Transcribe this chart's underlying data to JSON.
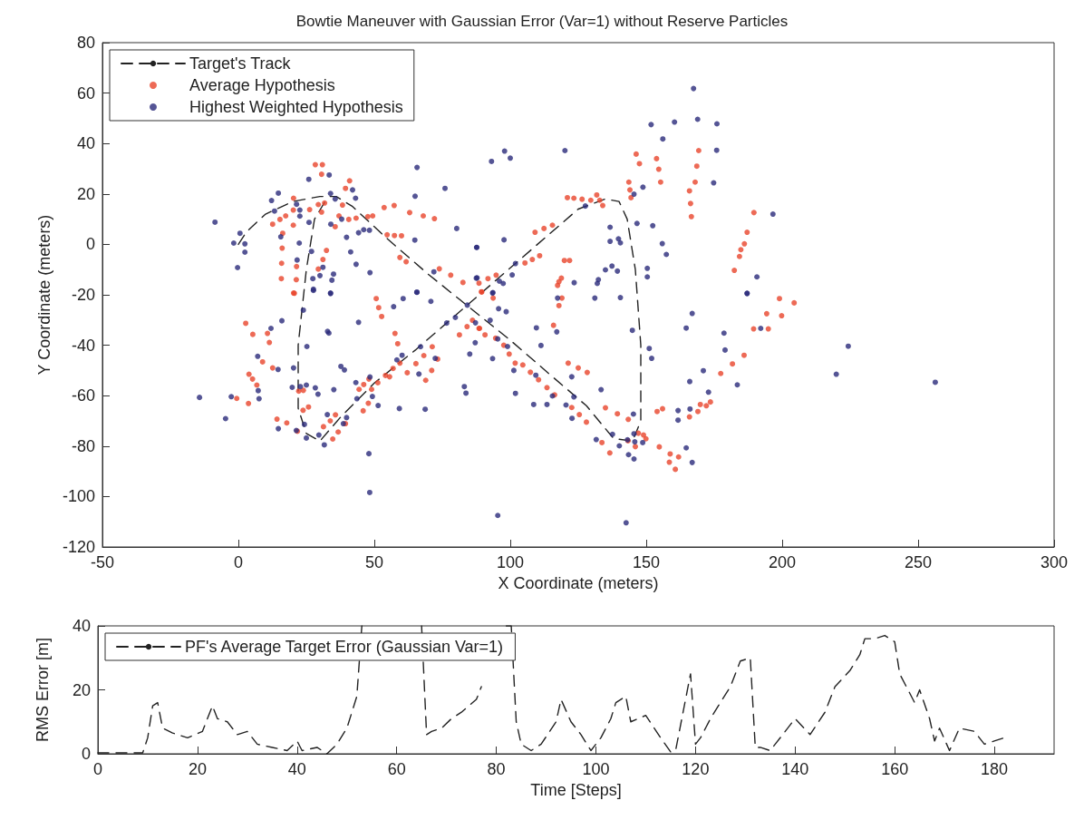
{
  "chart_data": [
    {
      "type": "scatter",
      "title": "Bowtie Maneuver with Gaussian Error (Var=1) without Reserve Particles",
      "xlabel": "X Coordinate (meters)",
      "ylabel": "Y Coordinate (meters)",
      "xlim": [
        -50,
        300
      ],
      "xticks": [
        -50,
        0,
        50,
        100,
        150,
        200,
        250,
        300
      ],
      "ylim": [
        -120,
        80
      ],
      "yticks": [
        -120,
        -100,
        -80,
        -60,
        -40,
        -20,
        0,
        20,
        40,
        60,
        80
      ],
      "grid": false,
      "legend": "top left",
      "marker": "circle",
      "series": [
        {
          "name": "Target's Track",
          "type": "line",
          "marker": "none",
          "line_style": "dashed",
          "color": "#222222",
          "x": [
            0,
            3,
            10,
            20,
            30,
            36,
            42,
            55,
            70,
            85,
            100,
            115,
            128,
            138,
            145,
            148,
            148,
            146,
            143,
            140,
            135,
            125,
            110,
            95,
            80,
            65,
            50,
            38,
            30,
            25,
            22,
            22,
            25,
            28,
            33
          ],
          "values": [
            0,
            5,
            12,
            17,
            19,
            19,
            15,
            2,
            -12,
            -25,
            -38,
            -52,
            -64,
            -77,
            -78,
            -70,
            -40,
            -10,
            10,
            17,
            18,
            14,
            0,
            -14,
            -28,
            -42,
            -55,
            -68,
            -78,
            -75,
            -65,
            -40,
            -10,
            10,
            19
          ]
        },
        {
          "name": "Average Hypothesis",
          "color": "#e8452c",
          "x": [
            28.3,
            30.9,
            30.6,
            40.9,
            39.4,
            20.3,
            29.4,
            31.7,
            38.3,
            30.6,
            20.2,
            17.4,
            15.3,
            12.6,
            20.2,
            26.2,
            37.0,
            40.6,
            43.3,
            47.6,
            49.4,
            53.6,
            57.3,
            63,
            68,
            72.1,
            35.6,
            54.7,
            57.4,
            60,
            59.4,
            61.7,
            73.9,
            78.1,
            82.6,
            16.3,
            16.1,
            32.4,
            31.1,
            15.9,
            21.4,
            29.4,
            15.8,
            21.3,
            20.3,
            146.3,
            147.5,
            153.8,
            154.6,
            155.3,
            143.6,
            144,
            144.4,
            169.3,
            168.6,
            168,
            165.9,
            166.3,
            166.6,
            189.6,
            187.1,
            186.1,
            184.8,
            184.3,
            182.4,
            121,
            123.4,
            126.4,
            129.6,
            131.8,
            132.9,
            134,
            109.1,
            112.4,
            115.5,
            105.4,
            108.1,
            110.8,
            119.9,
            121.8,
            118.8,
            117.9,
            117.4,
            91.8,
            94.8,
            88.5,
            89.4,
            20.6,
            2.7,
            5.3,
            10.7,
            11.4,
            8.9,
            12.6,
            3.9,
            5.2,
            6.8,
            -0.6,
            3.7,
            14.2,
            17.8,
            22.2,
            23.9,
            23.8,
            25.8,
            21.7,
            31.3,
            33.8,
            35.7,
            34.7,
            36.7,
            39.4,
            45.9,
            47.8,
            44.4,
            46.1,
            49,
            51.3,
            48,
            54.1,
            55.6,
            56.9,
            59.4,
            58.6,
            57.6,
            62.1,
            65.3,
            68.2,
            71.3,
            68.9,
            71.1,
            73.3,
            50.7,
            51.6,
            52.7,
            81.3,
            84.1,
            86.1,
            88.7,
            89.5,
            93.7,
            88.5,
            90.7,
            94.6,
            97.6,
            99.6,
            101.8,
            104.6,
            107.4,
            110.4,
            113.5,
            116.3,
            121.3,
            125,
            128.3,
            115.9,
            119,
            117.9,
            122.6,
            125.4,
            128,
            135,
            139.4,
            143.4,
            133.7,
            136.6,
            143.3,
            147.1,
            149,
            149.9,
            146,
            154.8,
            158.8,
            161.9,
            158.5,
            160.7,
            154,
            156,
            165.9,
            169,
            169.9,
            172.1,
            173.6,
            177.4,
            181.7,
            186,
            189.5,
            194.9,
            194.3,
            199.8,
            199,
            204.4
          ],
          "values": [
            31.6,
            31.6,
            27.8,
            25.2,
            22.2,
            18.3,
            15.8,
            16.4,
            15.6,
            12.8,
            13.6,
            11.3,
            9.9,
            8.0,
            7.6,
            13.8,
            11.3,
            9.9,
            10.4,
            11.0,
            11.3,
            14.6,
            15.4,
            12.6,
            11.3,
            10.2,
            7.0,
            3.8,
            3.5,
            3.4,
            -5.2,
            -6.9,
            -9.7,
            -12.2,
            -15.1,
            4.4,
            -1.5,
            -2.4,
            -6,
            -7.5,
            -8.8,
            -9.8,
            -13.6,
            -14,
            -19.3,
            35.8,
            32,
            34,
            29.8,
            24.7,
            24.7,
            21.6,
            18.5,
            37.2,
            31,
            24.7,
            21.2,
            16.2,
            11,
            12.6,
            4.8,
            0.2,
            -2.1,
            -4.8,
            -10.3,
            18.5,
            18.3,
            17.9,
            17.5,
            19.6,
            17.5,
            15.4,
            4.8,
            6.3,
            7.6,
            -7.4,
            -6,
            -4.5,
            -6.4,
            -6.4,
            -13.4,
            -14.8,
            -16.3,
            -13.6,
            -12.2,
            -15.4,
            -18.8,
            -19.4,
            -31.3,
            -35.7,
            -35.3,
            -38.9,
            -46.6,
            -49,
            -51.5,
            -53.4,
            -55.8,
            -61.1,
            -63.1,
            -69.3,
            -70.8,
            -58.2,
            -57.9,
            -65.8,
            -64.5,
            -74.1,
            -72.3,
            -70,
            -67.6,
            -77.2,
            -74.4,
            -71.1,
            -66,
            -63,
            -57.5,
            -55.6,
            -57.5,
            -54.9,
            -53.4,
            -52,
            -52.5,
            -49.2,
            -47.1,
            -39.4,
            -35.3,
            -50.9,
            -47.3,
            -44.1,
            -40.6,
            -53.9,
            -50,
            -45.5,
            -21.5,
            -25.1,
            -28.6,
            -35.9,
            -32.6,
            -30.1,
            -33.3,
            -18.9,
            -21.3,
            -33.3,
            -35.9,
            -37.2,
            -40,
            -43.5,
            -47.1,
            -47.8,
            -50.7,
            -53.7,
            -56.8,
            -59.7,
            -47.1,
            -49,
            -50.8,
            -32.1,
            -21.3,
            -24.3,
            -64.7,
            -67.5,
            -70.5,
            -64.8,
            -67.2,
            -69.4,
            -78.6,
            -82.7,
            -77.9,
            -74.9,
            -75.6,
            -77.1,
            -80.2,
            -80.3,
            -83.1,
            -84.3,
            -86.4,
            -89.2,
            -66.3,
            -65.2,
            -68.4,
            -66.3,
            -63.5,
            -64,
            -62.5,
            -51.2,
            -47.4,
            -44,
            -33.5,
            -33.5,
            -27.5,
            -28.3,
            -21.5,
            -23.2
          ]
        },
        {
          "name": "Highest Weighted Hypothesis",
          "color": "#2b2a7a",
          "x": [
            -8.6,
            65.7,
            76,
            25.9,
            33.4,
            14.7,
            12.2,
            21.4,
            13.3,
            22.6,
            22.6,
            26,
            33.9,
            35.6,
            42,
            43.1,
            65,
            34,
            38,
            39.8,
            44.2,
            46.1,
            48.2,
            80.3,
            64.9,
            0.6,
            -1.7,
            2.4,
            2.4,
            -0.3,
            15.6,
            22.4,
            26.9,
            41.3,
            43.3,
            48.4,
            31.1,
            30,
            35,
            21.6,
            27.4,
            34.4,
            27.6,
            33.9,
            71.9,
            87.6,
            87.8,
            65.7,
            167.4,
            168.9,
            160.4,
            151.8,
            176,
            156.1,
            175.9,
            174.8,
            97.9,
            100,
            93.1,
            120.1,
            148.8,
            145.5,
            127.6,
            196.6,
            146.6,
            152.4,
            136.7,
            136.7,
            139.8,
            140.5,
            155.9,
            157.4,
            97.7,
            87.7,
            101.9,
            100.7,
            96,
            97.4,
            93.6,
            135,
            137.4,
            139.4,
            123.5,
            132.4,
            132,
            150.4,
            150.4,
            190.7,
            187.1,
            87.5,
            -14.3,
            -4.7,
            -2.6,
            7.6,
            7.3,
            7.1,
            12,
            16,
            14.6,
            20.3,
            23.9,
            25.2,
            27.6,
            33.9,
            32.8,
            33.3,
            19.8,
            22.8,
            25,
            28.3,
            29.3,
            35.1,
            14.7,
            21.3,
            24.3,
            25,
            29.6,
            31.6,
            32.7,
            38.6,
            39.8,
            37.7,
            39,
            43.2,
            43.6,
            48.4,
            49.3,
            51.4,
            59.2,
            68.7,
            44.2,
            57.1,
            60.6,
            65.6,
            70.8,
            58.3,
            60.2,
            67,
            66.4,
            72.4,
            48,
            48.3,
            76.6,
            79.8,
            84.2,
            87.2,
            87.1,
            85.1,
            83.1,
            83.7,
            93.5,
            95.7,
            98.5,
            92.6,
            93.5,
            95.4,
            99,
            101.3,
            101.9,
            109.6,
            111.3,
            109.4,
            108.6,
            113.5,
            117.4,
            117.1,
            115.5,
            120.5,
            122.6,
            123.4,
            122.7,
            131.1,
            140.5,
            133.4,
            144.9,
            151.1,
            152,
            145.3,
            137.6,
            131.6,
            140.1,
            143.1,
            145.5,
            145.8,
            148.7,
            143.5,
            145.5,
            164.7,
            166.9,
            161.7,
            161.7,
            166.1,
            166,
            171,
            172.9,
            183.5,
            178.6,
            179,
            164.7,
            166.9,
            187.1,
            192.1,
            219.9,
            224.3,
            95.4,
            142.6,
            256.3
          ],
          "values": [
            8.8,
            30.5,
            22.2,
            25.8,
            27.5,
            20.3,
            17.4,
            15.9,
            13.2,
            13.6,
            11.2,
            8.7,
            20.2,
            18,
            21.6,
            18.3,
            19.1,
            8,
            10,
            2.8,
            4.6,
            5.8,
            5.6,
            6.3,
            1.7,
            4.4,
            0.5,
            0.2,
            -3.1,
            -9.2,
            3,
            0.5,
            -2.8,
            -3,
            -7.9,
            -11.2,
            -9.1,
            -12.4,
            -11.8,
            -6.2,
            -13.6,
            -14.2,
            -17.8,
            -19.3,
            -10.9,
            -1.2,
            -13.3,
            -19.0,
            61.8,
            49.6,
            48.5,
            47.5,
            47.8,
            41.8,
            37.3,
            24.4,
            37,
            34.2,
            32.9,
            37.2,
            22.7,
            19.9,
            15.2,
            12,
            8.3,
            7.4,
            6.8,
            1.2,
            2.2,
            0.6,
            0.3,
            -4,
            1.8,
            -1.2,
            -7.6,
            -12.1,
            -14.6,
            -15.5,
            -19.1,
            -10.1,
            -8.6,
            -10.6,
            -15.2,
            -14,
            -15.5,
            -9.5,
            -12.9,
            -12.9,
            -19.4,
            -13.4,
            -60.7,
            -69.1,
            -60.4,
            -61.2,
            -58,
            -44.4,
            -33.3,
            -30.3,
            -49.6,
            -49,
            -26.1,
            -40.5,
            -18.3,
            -19.5,
            -34.5,
            -35.2,
            -56.7,
            -56.4,
            -55.8,
            -56.9,
            -59.4,
            -57.6,
            -73.1,
            -73.8,
            -71.4,
            -76.8,
            -75.6,
            -79.5,
            -67.5,
            -71.1,
            -68.7,
            -48.4,
            -49.8,
            -54.8,
            -61.2,
            -52.6,
            -60.3,
            -63.9,
            -65.1,
            -65.4,
            -30.9,
            -24.7,
            -21.5,
            -19,
            -22.6,
            -45.8,
            -44,
            -40.6,
            -51.4,
            -45.2,
            -83,
            -98.4,
            -31.2,
            -29,
            -24.1,
            -31.1,
            -39,
            -43.5,
            -56.4,
            -59,
            -19.3,
            -25.5,
            -26.7,
            -30.1,
            -45.3,
            -37.5,
            -40.5,
            -50,
            -59.1,
            -33.1,
            -40.1,
            -51.9,
            -63.5,
            -63.5,
            -21.3,
            -34.7,
            -60.1,
            -63.7,
            -52.5,
            -60.5,
            -69,
            -21.3,
            -21.1,
            -57.6,
            -34.1,
            -41.3,
            -45.2,
            -67.3,
            -75.3,
            -77.4,
            -79.9,
            -77.5,
            -75.1,
            -78.3,
            -78.6,
            -83.4,
            -85.1,
            -80.7,
            -86.5,
            -65.9,
            -69.7,
            -65.3,
            -54.4,
            -50.1,
            -58.6,
            -55.7,
            -35.2,
            -41.9,
            -33.2,
            -27.4,
            -19.5,
            -33.3,
            -51.5,
            -40.4,
            -107.5,
            -110.4,
            -54.7
          ]
        }
      ]
    },
    {
      "type": "line",
      "xlabel": "Time [Steps]",
      "ylabel": "RMS Error [m]",
      "xlim": [
        0,
        192
      ],
      "xticks": [
        0,
        20,
        40,
        60,
        80,
        100,
        120,
        140,
        160,
        180
      ],
      "ylim": [
        0,
        40
      ],
      "yticks": [
        0,
        20,
        40
      ],
      "grid": false,
      "legend": "top left",
      "line_style": "dashed",
      "series": [
        {
          "name": "PF's Average Target Error (Gaussian Var=1)",
          "color": "#222222",
          "x": [
            0,
            2,
            4,
            6,
            8,
            9,
            10,
            11,
            12,
            13,
            15,
            18,
            21,
            23,
            24,
            26,
            28,
            30,
            32,
            35,
            38,
            40,
            41,
            44,
            46,
            48,
            50,
            52,
            53,
            59,
            65,
            66,
            67,
            69,
            71,
            73,
            76,
            77,
            81,
            82,
            83,
            84,
            85,
            87,
            89,
            92,
            93,
            95,
            97,
            99,
            101,
            103,
            104,
            106,
            107,
            110,
            113,
            115,
            116,
            118,
            119,
            120,
            121,
            123,
            125,
            127,
            129,
            131,
            132,
            133,
            135,
            136,
            138,
            140,
            143,
            146,
            148,
            151,
            153,
            154,
            156,
            158,
            160,
            161,
            163,
            164,
            165,
            167,
            168,
            169,
            171,
            173,
            176,
            178,
            180,
            182
          ],
          "values": [
            0.3,
            0.3,
            0.3,
            0.3,
            0.3,
            0.3,
            5,
            15,
            16,
            8,
            6.5,
            5,
            7,
            15,
            11,
            10,
            6,
            7,
            3,
            2,
            1,
            4,
            1,
            2,
            0,
            3,
            8,
            18,
            40,
            null,
            40,
            6,
            7,
            8,
            11,
            13,
            17,
            21,
            null,
            40,
            40,
            10,
            3,
            1,
            3,
            10,
            17,
            10,
            6,
            1,
            5,
            11,
            16,
            18,
            10,
            12,
            5,
            0.6,
            1,
            17,
            25,
            3,
            5,
            11,
            16,
            21,
            29,
            30,
            2,
            2,
            1,
            3,
            7,
            11,
            6,
            13,
            21,
            26,
            31,
            36,
            36,
            37,
            35,
            25,
            19,
            16,
            20,
            11,
            4,
            8,
            1,
            8,
            7,
            3,
            4,
            5
          ]
        }
      ]
    }
  ]
}
